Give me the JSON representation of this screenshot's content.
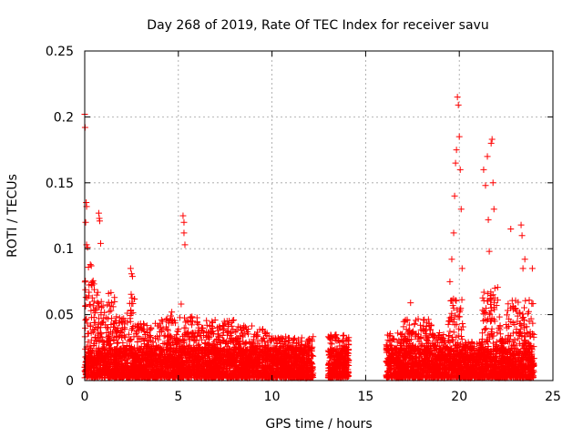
{
  "chart_data": {
    "type": "scatter",
    "title": "Day 268 of 2019, Rate Of TEC Index for receiver savu",
    "xlabel": "GPS time / hours",
    "ylabel": "ROTI / TECUs",
    "xlim": [
      0,
      25
    ],
    "ylim": [
      0,
      0.25
    ],
    "xticks": [
      0,
      5,
      10,
      15,
      20,
      25
    ],
    "xtick_labels": [
      "0",
      "5",
      "10",
      "15",
      "20",
      "25"
    ],
    "yticks": [
      0,
      0.05,
      0.1,
      0.15,
      0.2,
      0.25
    ],
    "ytick_labels": [
      "0",
      "0.05",
      "0.1",
      "0.15",
      "0.2",
      "0.25"
    ],
    "grid": true,
    "marker": "plus",
    "color": "#ff0000",
    "data_gap_hours": [
      [
        12.2,
        13.0
      ],
      [
        14.1,
        16.1
      ]
    ],
    "series": [
      {
        "points": [
          [
            0.0,
            0.202
          ],
          [
            0.02,
            0.192
          ],
          [
            0.05,
            0.12
          ],
          [
            0.08,
            0.135
          ],
          [
            0.1,
            0.132
          ],
          [
            0.1,
            0.103
          ],
          [
            0.15,
            0.101
          ],
          [
            0.2,
            0.086
          ],
          [
            0.3,
            0.088
          ],
          [
            0.35,
            0.087
          ],
          [
            0.75,
            0.127
          ],
          [
            0.78,
            0.123
          ],
          [
            0.8,
            0.121
          ],
          [
            0.85,
            0.104
          ],
          [
            2.45,
            0.085
          ],
          [
            2.5,
            0.081
          ],
          [
            2.55,
            0.079
          ],
          [
            5.25,
            0.125
          ],
          [
            5.3,
            0.12
          ],
          [
            5.3,
            0.112
          ],
          [
            5.35,
            0.103
          ],
          [
            5.15,
            0.058
          ],
          [
            4.65,
            0.052
          ],
          [
            17.4,
            0.059
          ],
          [
            19.5,
            0.075
          ],
          [
            19.6,
            0.092
          ],
          [
            19.7,
            0.112
          ],
          [
            19.75,
            0.14
          ],
          [
            19.8,
            0.165
          ],
          [
            19.85,
            0.175
          ],
          [
            19.9,
            0.215
          ],
          [
            19.95,
            0.209
          ],
          [
            20.0,
            0.185
          ],
          [
            20.05,
            0.16
          ],
          [
            20.1,
            0.13
          ],
          [
            20.15,
            0.085
          ],
          [
            21.3,
            0.16
          ],
          [
            21.4,
            0.148
          ],
          [
            21.5,
            0.17
          ],
          [
            21.55,
            0.122
          ],
          [
            21.6,
            0.098
          ],
          [
            21.7,
            0.18
          ],
          [
            21.75,
            0.183
          ],
          [
            21.8,
            0.15
          ],
          [
            21.85,
            0.13
          ],
          [
            21.9,
            0.07
          ],
          [
            22.75,
            0.115
          ],
          [
            23.3,
            0.118
          ],
          [
            23.35,
            0.11
          ],
          [
            23.4,
            0.085
          ],
          [
            23.5,
            0.092
          ],
          [
            23.9,
            0.085
          ]
        ],
        "bands": [
          {
            "from": 0.0,
            "to": 0.6,
            "max": 0.075
          },
          {
            "from": 0.6,
            "to": 1.6,
            "max": 0.065
          },
          {
            "from": 1.6,
            "to": 2.4,
            "max": 0.05
          },
          {
            "from": 2.4,
            "to": 2.7,
            "max": 0.065
          },
          {
            "from": 2.7,
            "to": 4.0,
            "max": 0.042
          },
          {
            "from": 4.0,
            "to": 6.0,
            "max": 0.047
          },
          {
            "from": 6.0,
            "to": 8.0,
            "max": 0.044
          },
          {
            "from": 8.0,
            "to": 10.0,
            "max": 0.04
          },
          {
            "from": 10.0,
            "to": 12.2,
            "max": 0.032
          },
          {
            "from": 13.0,
            "to": 14.1,
            "max": 0.033
          },
          {
            "from": 16.1,
            "to": 17.0,
            "max": 0.034
          },
          {
            "from": 17.0,
            "to": 18.5,
            "max": 0.045
          },
          {
            "from": 18.5,
            "to": 19.4,
            "max": 0.035
          },
          {
            "from": 19.4,
            "to": 20.2,
            "max": 0.06
          },
          {
            "from": 20.2,
            "to": 21.2,
            "max": 0.028
          },
          {
            "from": 21.2,
            "to": 22.2,
            "max": 0.07
          },
          {
            "from": 22.2,
            "to": 22.5,
            "max": 0.03
          },
          {
            "from": 22.5,
            "to": 24.0,
            "max": 0.06
          }
        ]
      }
    ]
  }
}
